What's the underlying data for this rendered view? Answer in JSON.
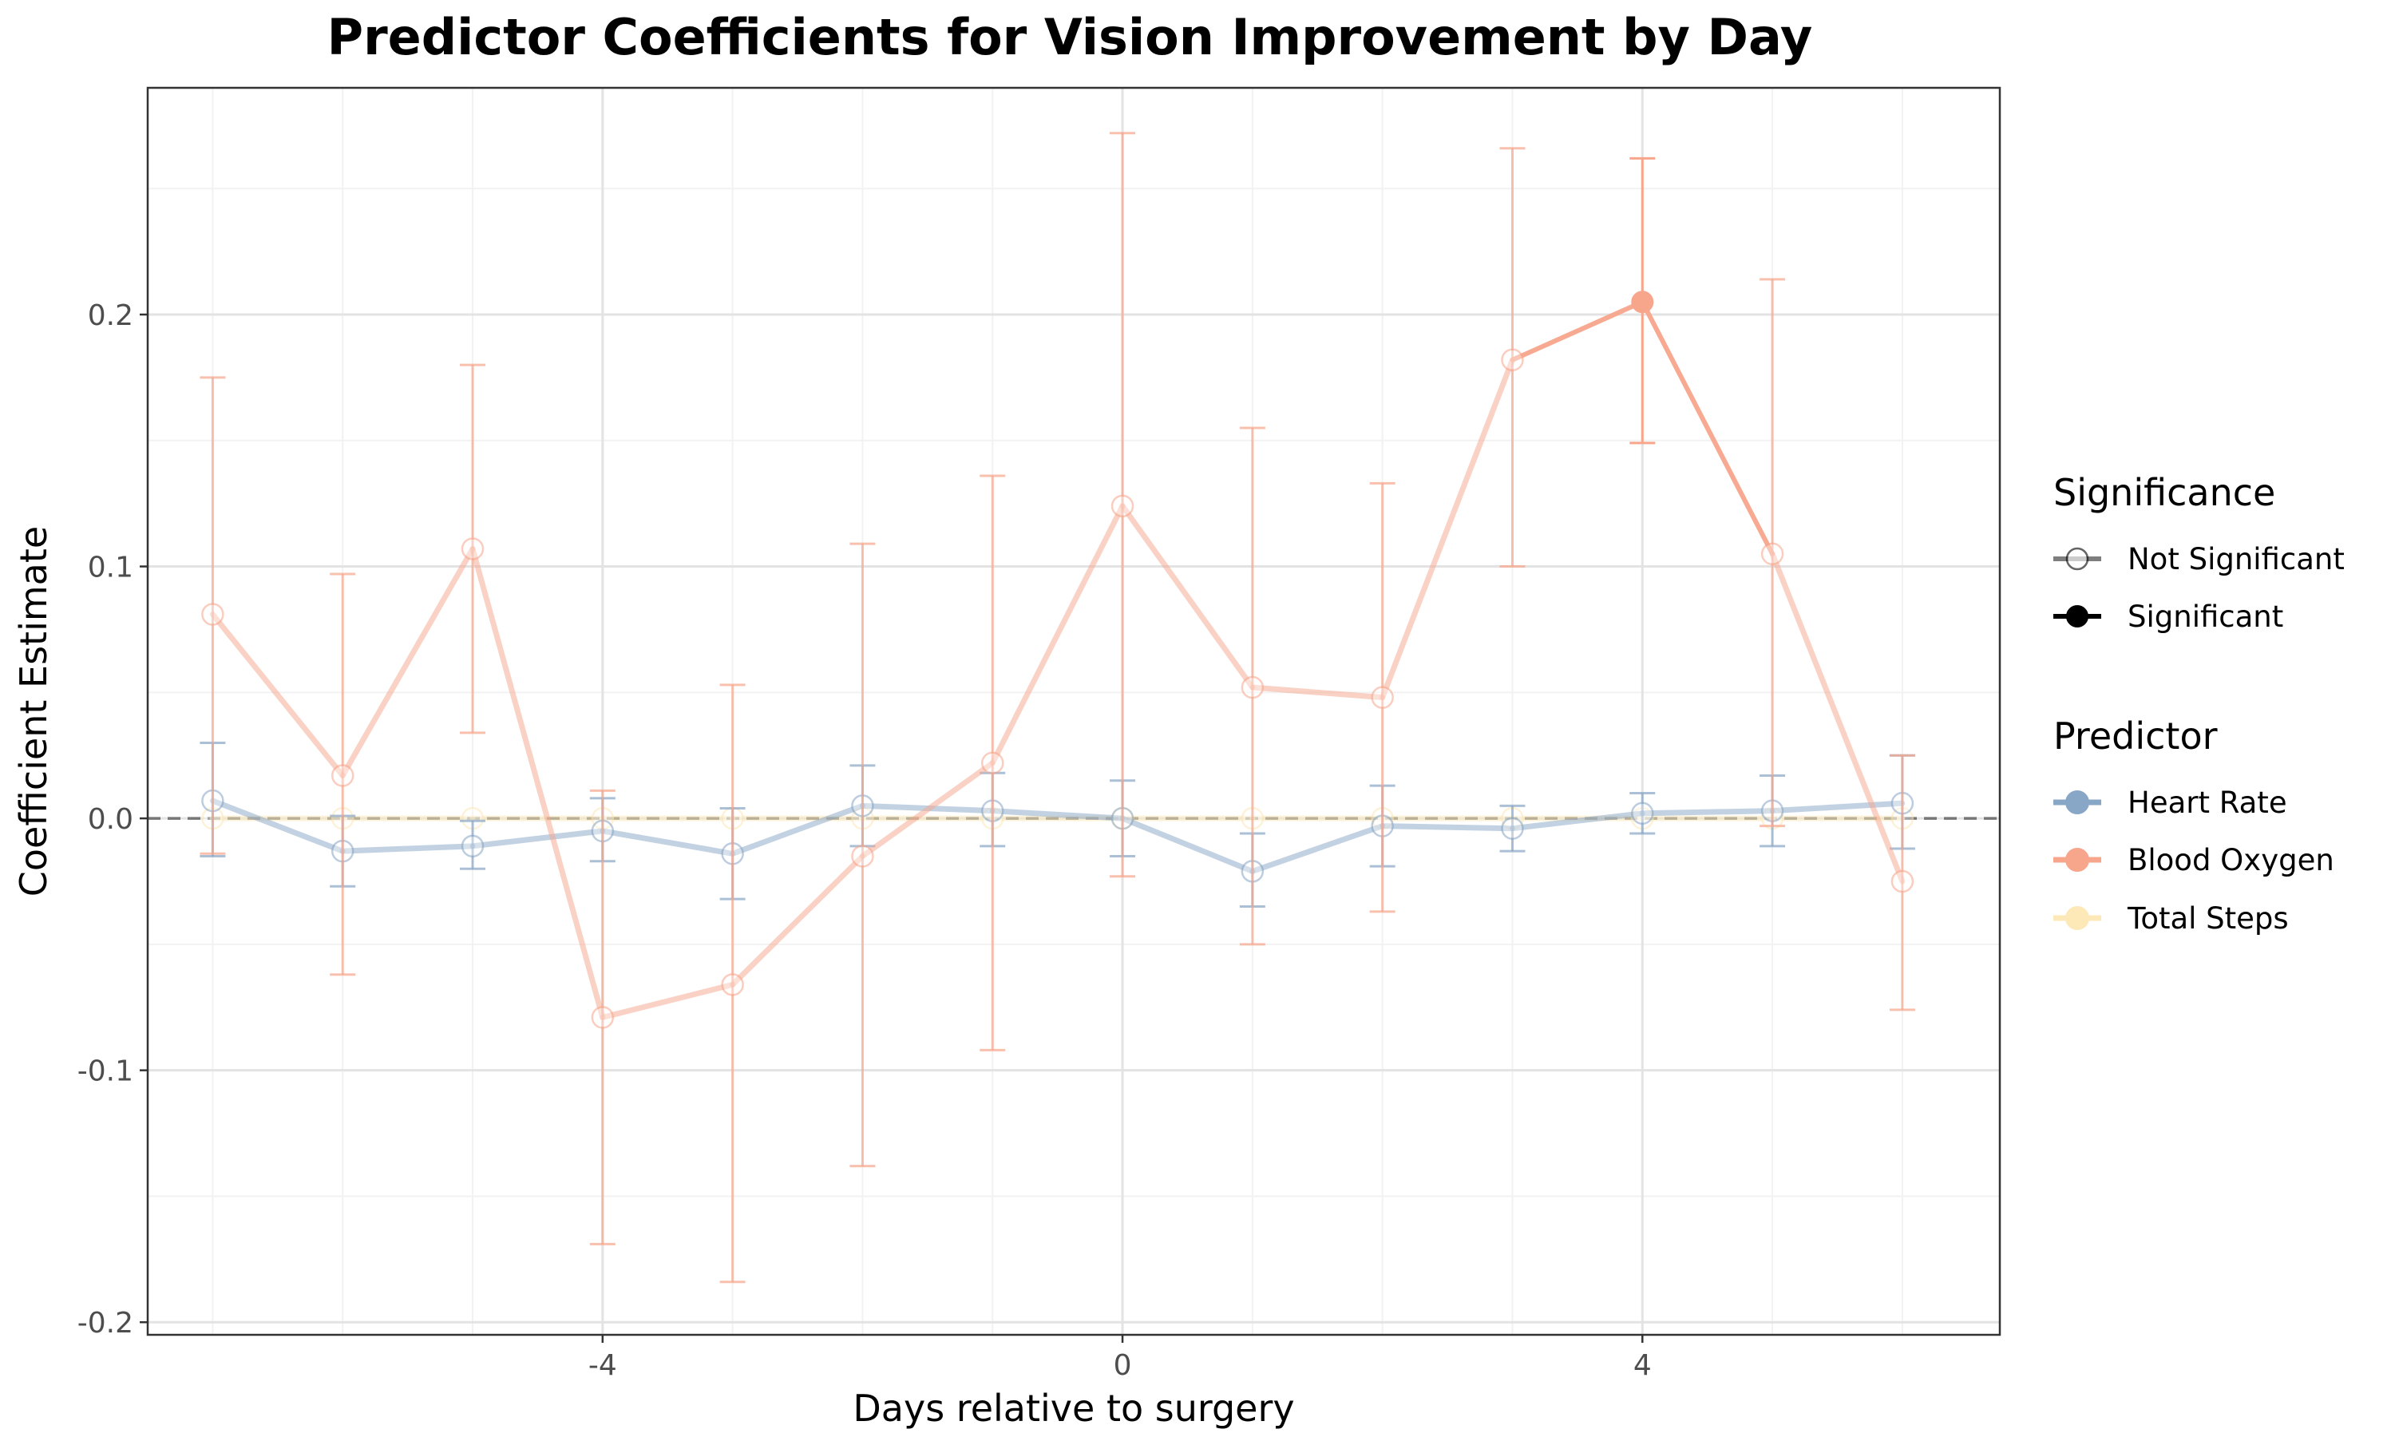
{
  "chart_data": {
    "type": "line",
    "title": "Predictor Coefficients for Vision Improvement by Day",
    "xlabel": "Days relative to surgery",
    "ylabel": "Coefficient Estimate",
    "xlim": [
      -7.5,
      6.75
    ],
    "ylim": [
      -0.205,
      0.29
    ],
    "x_ticks": [
      -4,
      0,
      4
    ],
    "x_tick_labels": [
      "-4",
      "0",
      "4"
    ],
    "y_ticks": [
      -0.2,
      -0.1,
      0.0,
      0.1,
      0.2
    ],
    "y_tick_labels": [
      "-0.2",
      "-0.1",
      "0.0",
      "0.1",
      "0.2"
    ],
    "reference_line": {
      "y": 0,
      "style": "dashed"
    },
    "grid": true,
    "legend_position": "right",
    "legends": [
      {
        "title": "Significance",
        "entries": [
          {
            "label": "Not Significant",
            "marker": "open-circle"
          },
          {
            "label": "Significant",
            "marker": "filled-circle"
          }
        ]
      },
      {
        "title": "Predictor",
        "entries": [
          {
            "label": "Heart Rate",
            "color": "#88a6c6"
          },
          {
            "label": "Blood Oxygen",
            "color": "#f7a68c"
          },
          {
            "label": "Total Steps",
            "color": "#fde9b8"
          }
        ]
      }
    ],
    "x": [
      -7,
      -6,
      -5,
      -4,
      -3,
      -2,
      -1,
      0,
      1,
      2,
      3,
      4,
      5,
      6
    ],
    "series": [
      {
        "name": "Heart Rate",
        "color": "#88a6c6",
        "values": [
          0.007,
          -0.013,
          -0.011,
          -0.005,
          -0.014,
          0.005,
          0.003,
          0.0,
          -0.021,
          -0.003,
          -0.004,
          0.002,
          0.003,
          0.006
        ],
        "lower": [
          -0.015,
          -0.027,
          -0.02,
          -0.017,
          -0.032,
          -0.011,
          -0.011,
          -0.015,
          -0.035,
          -0.019,
          -0.013,
          -0.006,
          -0.011,
          -0.012
        ],
        "upper": [
          0.03,
          0.001,
          -0.001,
          0.008,
          0.004,
          0.021,
          0.018,
          0.015,
          -0.006,
          0.013,
          0.005,
          0.01,
          0.017,
          0.025
        ],
        "significant": [
          false,
          false,
          false,
          false,
          false,
          false,
          false,
          false,
          false,
          false,
          false,
          false,
          false,
          false
        ]
      },
      {
        "name": "Blood Oxygen",
        "color": "#f7a68c",
        "values": [
          0.081,
          0.017,
          0.107,
          -0.079,
          -0.066,
          -0.015,
          0.022,
          0.124,
          0.052,
          0.048,
          0.182,
          0.205,
          0.105,
          -0.025
        ],
        "lower": [
          -0.014,
          -0.062,
          0.034,
          -0.169,
          -0.184,
          -0.138,
          -0.092,
          -0.023,
          -0.05,
          -0.037,
          0.1,
          0.149,
          -0.003,
          -0.076
        ],
        "upper": [
          0.175,
          0.097,
          0.18,
          0.011,
          0.053,
          0.109,
          0.136,
          0.272,
          0.155,
          0.133,
          0.266,
          0.262,
          0.214,
          0.025
        ],
        "significant": [
          false,
          false,
          false,
          false,
          false,
          false,
          false,
          false,
          false,
          false,
          false,
          true,
          false,
          false
        ]
      },
      {
        "name": "Total Steps",
        "color": "#fde9b8",
        "values": [
          0.0,
          0.0,
          0.0,
          0.0,
          0.0,
          0.0,
          0.0,
          0.0,
          0.0,
          0.0,
          0.0,
          0.0,
          0.0,
          0.0
        ],
        "lower": [
          0.0,
          0.0,
          0.0,
          0.0,
          0.0,
          0.0,
          0.0,
          0.0,
          0.0,
          0.0,
          0.0,
          0.0,
          0.0,
          0.0
        ],
        "upper": [
          0.0,
          0.0,
          0.0,
          0.0,
          0.0,
          0.0,
          0.0,
          0.0,
          0.0,
          0.0,
          0.0,
          0.0,
          0.0,
          0.0
        ],
        "significant": [
          false,
          false,
          false,
          false,
          false,
          false,
          false,
          false,
          false,
          false,
          false,
          false,
          false,
          false
        ]
      }
    ]
  }
}
